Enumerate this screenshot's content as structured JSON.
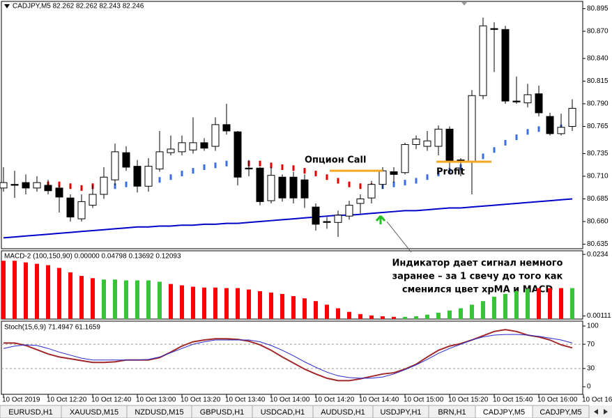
{
  "chart_data": [
    {
      "type": "candlestick",
      "title": "CADJPY,M5  82.262 82.262 82.243 82.246",
      "open": [
        80.697,
        80.701,
        80.703,
        80.697,
        80.7,
        80.697,
        80.686,
        80.663,
        80.678,
        80.69,
        80.706,
        80.736,
        80.721,
        80.699,
        80.718,
        80.736,
        80.737,
        80.739,
        80.747,
        80.743,
        80.767,
        80.759,
        80.719,
        80.719,
        80.683,
        80.709,
        80.709,
        80.706,
        80.676,
        80.66,
        80.659,
        80.666,
        80.68,
        80.686,
        80.701,
        80.715,
        80.714,
        80.745,
        80.743,
        80.743,
        80.762,
        80.728,
        80.726,
        80.799,
        80.873,
        80.872,
        80.793,
        80.791,
        80.801,
        80.776,
        80.757,
        80.765
      ],
      "high": [
        80.72,
        80.716,
        80.712,
        80.71,
        80.706,
        80.7,
        80.69,
        80.69,
        80.7,
        80.72,
        80.746,
        80.743,
        80.728,
        80.73,
        80.76,
        80.755,
        80.755,
        80.775,
        80.752,
        80.775,
        80.79,
        80.76,
        80.728,
        80.72,
        80.72,
        80.712,
        80.715,
        80.712,
        80.68,
        80.665,
        80.672,
        80.683,
        80.69,
        80.705,
        80.72,
        80.72,
        80.747,
        80.755,
        80.76,
        80.766,
        80.765,
        80.73,
        80.805,
        80.885,
        80.88,
        80.876,
        80.82,
        80.812,
        80.81,
        80.78,
        80.779,
        80.795
      ],
      "low": [
        80.693,
        80.686,
        80.69,
        80.693,
        80.69,
        80.67,
        80.66,
        80.66,
        80.675,
        80.685,
        80.7,
        80.716,
        80.692,
        80.693,
        80.715,
        80.733,
        80.733,
        80.735,
        80.738,
        80.738,
        80.756,
        80.7,
        80.71,
        80.678,
        80.68,
        80.682,
        80.68,
        80.675,
        80.65,
        80.652,
        80.643,
        80.662,
        80.669,
        80.68,
        80.696,
        80.703,
        80.712,
        80.74,
        80.738,
        80.733,
        80.715,
        80.71,
        80.69,
        80.795,
        80.825,
        80.79,
        80.79,
        80.786,
        80.776,
        80.755,
        80.755,
        80.76
      ],
      "close": [
        80.703,
        80.7,
        80.697,
        80.703,
        80.694,
        80.687,
        80.665,
        80.682,
        80.69,
        80.709,
        80.737,
        80.72,
        80.699,
        80.721,
        80.737,
        80.74,
        80.747,
        80.747,
        80.741,
        80.767,
        80.76,
        80.709,
        80.718,
        80.682,
        80.711,
        80.686,
        80.686,
        80.686,
        80.657,
        80.659,
        80.667,
        80.678,
        80.685,
        80.701,
        80.716,
        80.712,
        80.745,
        80.751,
        80.749,
        80.762,
        80.726,
        80.727,
        80.799,
        80.876,
        80.872,
        80.793,
        80.792,
        80.8,
        80.78,
        80.757,
        80.764,
        80.785
      ],
      "ma": {
        "color": "#0000c8",
        "values": [
          80.642,
          80.643,
          80.644,
          80.645,
          80.646,
          80.647,
          80.648,
          80.649,
          80.65,
          80.651,
          80.652,
          80.653,
          80.654,
          80.654,
          80.655,
          80.655,
          80.656,
          80.656,
          80.657,
          80.657,
          80.658,
          80.658,
          80.659,
          80.66,
          80.661,
          80.662,
          80.663,
          80.664,
          80.665,
          80.666,
          80.667,
          80.667,
          80.668,
          80.669,
          80.67,
          80.671,
          80.672,
          80.672,
          80.673,
          80.674,
          80.675,
          80.675,
          80.676,
          80.677,
          80.678,
          80.679,
          80.68,
          80.681,
          80.682,
          80.683,
          80.684,
          80.685
        ]
      },
      "xpma": {
        "values": [
          null,
          null,
          null,
          null,
          80.701,
          80.701,
          80.699,
          80.697,
          80.699,
          80.697,
          80.699,
          80.701,
          80.703,
          80.705,
          80.706,
          80.709,
          80.713,
          80.716,
          80.72,
          80.722,
          80.724,
          80.724,
          80.724,
          80.724,
          80.722,
          80.72,
          80.719,
          80.716,
          80.713,
          80.709,
          80.705,
          80.701,
          80.699,
          80.699,
          80.699,
          80.701,
          80.703,
          80.705,
          80.709,
          80.713,
          80.716,
          80.72,
          80.728,
          80.732,
          80.739,
          80.747,
          80.753,
          80.759,
          80.762,
          80.766,
          80.764,
          null
        ],
        "colors": [
          null,
          null,
          null,
          null,
          "#e00000",
          "#e00000",
          "#e00000",
          "#e00000",
          "#e00000",
          "#e00000",
          "#3a6fe0",
          "#3a6fe0",
          "#3a6fe0",
          "#3a6fe0",
          "#3a6fe0",
          "#3a6fe0",
          "#3a6fe0",
          "#3a6fe0",
          "#3a6fe0",
          "#3a6fe0",
          "#3a6fe0",
          "#3a6fe0",
          "#e00000",
          "#e00000",
          "#e00000",
          "#e00000",
          "#e00000",
          "#e00000",
          "#e00000",
          "#e00000",
          "#e00000",
          "#e00000",
          "#e00000",
          "#e00000",
          "#3a6fe0",
          "#3a6fe0",
          "#3a6fe0",
          "#3a6fe0",
          "#3a6fe0",
          "#3a6fe0",
          "#3a6fe0",
          "#3a6fe0",
          "#3a6fe0",
          "#3a6fe0",
          "#3a6fe0",
          "#3a6fe0",
          "#3a6fe0",
          "#3a6fe0",
          "#3a6fe0",
          "#3a6fe0",
          "#3a6fe0",
          null
        ]
      },
      "ylim": [
        80.63,
        80.903
      ],
      "yticks": [
        80.895,
        {
          "value": 80.87,
          "label": "80.870"
        },
        {
          "value": 80.84,
          "label": "80.840"
        },
        80.815,
        {
          "value": 80.79,
          "label": "80.790"
        },
        80.765,
        80.735,
        {
          "value": 80.71,
          "label": "80.710"
        },
        80.685,
        {
          "value": 80.66,
          "label": "80.660"
        },
        80.635
      ],
      "annotations": [
        {
          "text": "Опцион Call",
          "level": 80.716,
          "color": "#f5a623"
        },
        {
          "text": "Profit",
          "level": 80.726,
          "color": "#f5a623"
        }
      ],
      "note": [
        "Индикатор дает сигнал немного",
        "заранее – за 1 свечу до того как",
        "сменился цвет xpMA и MACD"
      ]
    },
    {
      "type": "bar",
      "title": "MACD-2 (100,150,90) 0.00000 0.04798 0.13692 0.12093",
      "values": [
        0.0211,
        0.0211,
        0.0205,
        0.02,
        0.0195,
        0.0185,
        0.0169,
        0.0156,
        0.0148,
        0.0143,
        0.0143,
        0.014,
        0.014,
        0.014,
        0.0135,
        0.0127,
        0.0122,
        0.0117,
        0.0114,
        0.0114,
        0.0112,
        0.0112,
        0.0107,
        0.0101,
        0.0096,
        0.0091,
        0.0083,
        0.0075,
        0.0065,
        0.0052,
        0.0039,
        0.0026,
        0.0018,
        0.0013,
        0.001,
        0.0008,
        0.0008,
        0.001,
        0.0016,
        0.0023,
        0.0031,
        0.0039,
        0.0052,
        0.0065,
        0.0081,
        0.0091,
        0.0101,
        0.0109,
        0.0112,
        0.0112,
        0.0112,
        0.0112
      ],
      "colors": [
        "#ff0000",
        "#ff0000",
        "#ff0000",
        "#ff0000",
        "#ff0000",
        "#ff0000",
        "#ff0000",
        "#ff0000",
        "#ff0000",
        "#32c832",
        "#32c832",
        "#32c832",
        "#32c832",
        "#32c832",
        "#32c832",
        "#ff0000",
        "#ff0000",
        "#ff0000",
        "#ff0000",
        "#ff0000",
        "#ff0000",
        "#ff0000",
        "#ff0000",
        "#ff0000",
        "#ff0000",
        "#ff0000",
        "#ff0000",
        "#ff0000",
        "#ff0000",
        "#ff0000",
        "#ff0000",
        "#ff0000",
        "#ff0000",
        "#ff0000",
        "#ff0000",
        "#ff0000",
        "#32c832",
        "#32c832",
        "#32c832",
        "#32c832",
        "#32c832",
        "#32c832",
        "#32c832",
        "#32c832",
        "#32c832",
        "#32c832",
        "#32c832",
        "#32c832",
        "#ff0000",
        "#ff0000",
        "#ff0000",
        "#32c832"
      ],
      "ylim": [
        0,
        0.0247
      ],
      "yticks": [
        0.0234,
        0.00111
      ]
    },
    {
      "type": "line",
      "title": "Stoch(15,6,9) 71.4947 61.1659",
      "series": [
        {
          "color": "#a0282a",
          "values": [
            72,
            72,
            68,
            61,
            54,
            49,
            46,
            43,
            40,
            40,
            41,
            44,
            44,
            44,
            48,
            57,
            67,
            74,
            77,
            79,
            79,
            78,
            75,
            69,
            60,
            49,
            39,
            29,
            21,
            14,
            10,
            10,
            13,
            17,
            21,
            23,
            29,
            37,
            49,
            60,
            67,
            71,
            77,
            84,
            91,
            94,
            91,
            85,
            82,
            77,
            69,
            64
          ]
        },
        {
          "color": "#2828c8",
          "values": [
            63,
            67,
            69,
            68,
            63,
            57,
            52,
            47,
            44,
            44,
            44,
            44,
            44,
            45,
            49,
            56,
            63,
            70,
            74,
            77,
            77,
            77,
            77,
            74,
            68,
            60,
            51,
            41,
            32,
            24,
            18,
            15,
            14,
            14,
            16,
            21,
            28,
            36,
            45,
            55,
            63,
            70,
            77,
            82,
            85,
            86,
            86,
            85,
            83,
            80,
            77,
            72
          ]
        }
      ],
      "ylim": [
        -12.5,
        108
      ],
      "yticks": [
        100,
        70,
        30,
        0
      ],
      "levels": [
        70,
        30
      ]
    }
  ],
  "x_labels": [
    "10 Oct 2019",
    "10 Oct 12:20",
    "10 Oct 12:40",
    "10 Oct 13:00",
    "10 Oct 13:20",
    "10 Oct 13:40",
    "10 Oct 14:00",
    "10 Oct 14:20",
    "10 Oct 14:40",
    "10 Oct 15:00",
    "10 Oct 15:20",
    "10 Oct 15:40",
    "10 Oct 16:00",
    "10 Oct 16"
  ],
  "tabs": {
    "items": [
      "EURUSD,H1",
      "XAUUSD,M15",
      "NZDUSD,M15",
      "GBPUSD,H1",
      "USDCAD,H1",
      "AUDUSD,H1",
      "USDJPY,H1",
      "BRN,H1",
      "CADJPY,M5",
      "CADJPY,M5"
    ],
    "active": 8
  }
}
